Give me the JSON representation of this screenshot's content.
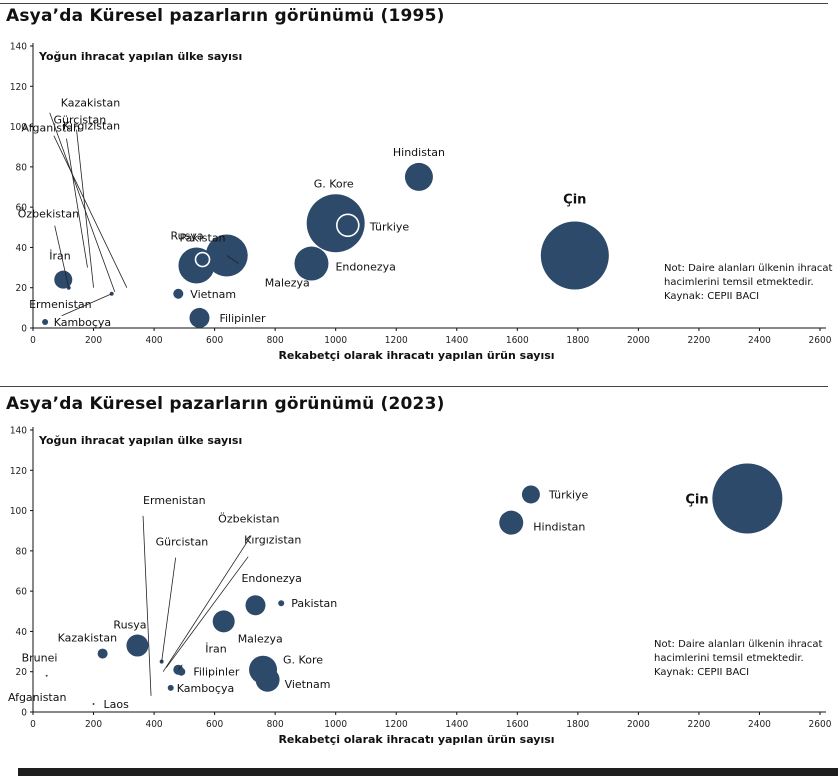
{
  "chart_data": [
    {
      "type": "scatter",
      "title": "Asya’da Küresel pazarların görünümü (1995)",
      "xlabel": "Rekabetçi olarak ihracatı yapılan ürün sayısı",
      "ylabel": "Yoğun ihracat yapılan ülke sayısı",
      "xlim": [
        0,
        2600
      ],
      "ylim": [
        0,
        140
      ],
      "xticks": [
        "0",
        "200",
        "400",
        "600",
        "800",
        "1000",
        "1200",
        "1400",
        "1600",
        "1800",
        "2000",
        "2200",
        "2400",
        "2600"
      ],
      "yticks": [
        "0",
        "20",
        "40",
        "60",
        "80",
        "100",
        "120",
        "140"
      ],
      "bubble_color": "#2d4a6b",
      "note": [
        "Not: Daire alanları ülkenin ihracat",
        "hacimlerini temsil etmektedir.",
        "Kaynak: CEPII BACI"
      ],
      "points": [
        {
          "name": "Çin",
          "x": 1790,
          "y": 36,
          "size": 34,
          "bold": true
        },
        {
          "name": "Hindistan",
          "x": 1275,
          "y": 75,
          "size": 14
        },
        {
          "name": "G. Kore",
          "x": 1000,
          "y": 52,
          "size": 29
        },
        {
          "name": "Türkiye",
          "x": 1040,
          "y": 51,
          "size": 11,
          "outline": true
        },
        {
          "name": "Endonezya",
          "x": 920,
          "y": 32,
          "size": 17
        },
        {
          "name": "Malezya",
          "x": 640,
          "y": 36,
          "size": 21
        },
        {
          "name": "Pakistan",
          "x": 560,
          "y": 34,
          "size": 7,
          "outline": true
        },
        {
          "name": "Rusya",
          "x": 540,
          "y": 31,
          "size": 18
        },
        {
          "name": "Vietnam",
          "x": 480,
          "y": 17,
          "size": 5
        },
        {
          "name": "Filipinler",
          "x": 550,
          "y": 5,
          "size": 10
        },
        {
          "name": "İran",
          "x": 100,
          "y": 24,
          "size": 9
        },
        {
          "name": "Özbekistan",
          "x": 118,
          "y": 20,
          "size": 2
        },
        {
          "name": "Ermenistan",
          "x": 40,
          "y": 3,
          "size": 3
        },
        {
          "name": "Kamboçya",
          "x": 260,
          "y": 17,
          "size": 2
        },
        {
          "name": "Afganistan",
          "x": 180,
          "y": 30,
          "size": 0
        },
        {
          "name": "Gürcistan",
          "x": 200,
          "y": 20,
          "size": 0
        },
        {
          "name": "Kazakistan",
          "x": 270,
          "y": 18,
          "size": 0
        },
        {
          "name": "Kırgızistan",
          "x": 310,
          "y": 20,
          "size": 0
        }
      ]
    },
    {
      "type": "scatter",
      "title": "Asya’da Küresel pazarların görünümü (2023)",
      "xlabel": "Rekabetçi olarak ihracatı yapılan ürün sayısı",
      "ylabel": "Yoğun ihracat yapılan ülke sayısı",
      "xlim": [
        0,
        2600
      ],
      "ylim": [
        0,
        140
      ],
      "xticks": [
        "0",
        "200",
        "400",
        "600",
        "800",
        "1000",
        "1200",
        "1400",
        "1600",
        "1800",
        "2000",
        "2200",
        "2400",
        "2600"
      ],
      "yticks": [
        "0",
        "20",
        "40",
        "60",
        "80",
        "100",
        "120",
        "140"
      ],
      "bubble_color": "#2d4a6b",
      "note": [
        "Not: Daire alanları ülkenin ihracat",
        "hacimlerini temsil etmektedir.",
        "Kaynak: CEPII BACI"
      ],
      "points": [
        {
          "name": "Çin",
          "x": 2360,
          "y": 106,
          "size": 35,
          "bold": true
        },
        {
          "name": "Türkiye",
          "x": 1645,
          "y": 108,
          "size": 9
        },
        {
          "name": "Hindistan",
          "x": 1580,
          "y": 94,
          "size": 12
        },
        {
          "name": "Endonezya",
          "x": 735,
          "y": 53,
          "size": 10
        },
        {
          "name": "Pakistan",
          "x": 820,
          "y": 54,
          "size": 3
        },
        {
          "name": "Malezya",
          "x": 630,
          "y": 45,
          "size": 11
        },
        {
          "name": "Rusya",
          "x": 345,
          "y": 33,
          "size": 11
        },
        {
          "name": "Kazakistan",
          "x": 230,
          "y": 29,
          "size": 5
        },
        {
          "name": "G. Kore",
          "x": 760,
          "y": 21,
          "size": 14
        },
        {
          "name": "Vietnam",
          "x": 775,
          "y": 16,
          "size": 12
        },
        {
          "name": "İran",
          "x": 480,
          "y": 21,
          "size": 5
        },
        {
          "name": "Filipinler",
          "x": 490,
          "y": 20,
          "size": 4
        },
        {
          "name": "Kamboçya",
          "x": 455,
          "y": 12,
          "size": 3
        },
        {
          "name": "Gürcistan",
          "x": 425,
          "y": 25,
          "size": 2
        },
        {
          "name": "Brunei",
          "x": 45,
          "y": 18,
          "size": 1
        },
        {
          "name": "Afganistan",
          "x": 165,
          "y": 12,
          "size": 0
        },
        {
          "name": "Laos",
          "x": 200,
          "y": 4,
          "size": 1
        },
        {
          "name": "Ermenistan",
          "x": 390,
          "y": 8,
          "size": 0
        },
        {
          "name": "Özbekistan",
          "x": 430,
          "y": 20,
          "size": 0
        },
        {
          "name": "Kırgızistan",
          "x": 440,
          "y": 22,
          "size": 0
        }
      ]
    }
  ]
}
